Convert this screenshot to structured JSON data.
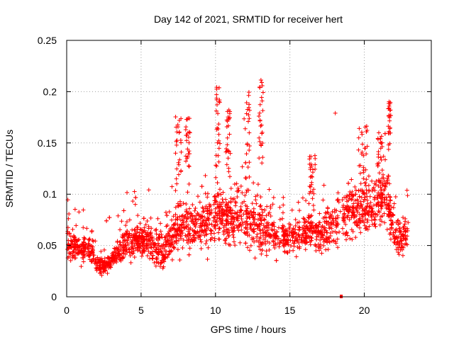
{
  "chart_data": {
    "type": "scatter",
    "title": "Day 142 of 2021, SRMTID for receiver hert",
    "xlabel": "GPS time / hours",
    "ylabel": "SRMTID / TECUs",
    "xlim": [
      0,
      24.5
    ],
    "ylim": [
      0,
      0.25
    ],
    "xticks": [
      0,
      5,
      10,
      15,
      20
    ],
    "xtick_labels": [
      "0",
      "5",
      "10",
      "15",
      "20"
    ],
    "yticks": [
      0,
      0.05,
      0.1,
      0.15,
      0.2,
      0.25
    ],
    "ytick_labels": [
      "0",
      "0.05",
      "0.1",
      "0.15",
      "0.2",
      "0.25"
    ],
    "grid": true,
    "marker": "+",
    "series_color": "#ff0000",
    "profile": {
      "hours": [
        0,
        0.5,
        1,
        1.5,
        2,
        2.5,
        3,
        3.5,
        4,
        4.5,
        5,
        5.5,
        6,
        6.5,
        7,
        7.5,
        8,
        8.5,
        9,
        9.5,
        10,
        10.5,
        11,
        11.5,
        12,
        12.5,
        13,
        13.5,
        14,
        14.5,
        15,
        15.5,
        16,
        16.5,
        17,
        17.5,
        18,
        18.5,
        19,
        19.5,
        20,
        20.5,
        21,
        21.5,
        22,
        22.5,
        23
      ],
      "median": [
        0.055,
        0.048,
        0.045,
        0.05,
        0.032,
        0.03,
        0.035,
        0.045,
        0.055,
        0.055,
        0.055,
        0.055,
        0.05,
        0.045,
        0.06,
        0.065,
        0.07,
        0.07,
        0.07,
        0.075,
        0.08,
        0.075,
        0.075,
        0.08,
        0.078,
        0.07,
        0.07,
        0.065,
        0.06,
        0.06,
        0.06,
        0.062,
        0.06,
        0.065,
        0.06,
        0.065,
        0.07,
        0.075,
        0.08,
        0.085,
        0.09,
        0.085,
        0.09,
        0.1,
        0.06,
        0.055,
        0.06
      ],
      "spread": [
        0.02,
        0.015,
        0.015,
        0.015,
        0.01,
        0.01,
        0.01,
        0.015,
        0.02,
        0.02,
        0.02,
        0.02,
        0.025,
        0.02,
        0.025,
        0.025,
        0.025,
        0.025,
        0.025,
        0.03,
        0.035,
        0.03,
        0.03,
        0.035,
        0.035,
        0.03,
        0.035,
        0.025,
        0.02,
        0.02,
        0.02,
        0.02,
        0.02,
        0.025,
        0.02,
        0.025,
        0.025,
        0.025,
        0.03,
        0.03,
        0.03,
        0.03,
        0.03,
        0.035,
        0.025,
        0.02,
        0.02
      ]
    },
    "clusters": [
      {
        "x": [
          7.3,
          7.7
        ],
        "y": [
          0.1,
          0.185
        ]
      },
      {
        "x": [
          8.0,
          8.3
        ],
        "y": [
          0.1,
          0.175
        ]
      },
      {
        "x": [
          10.0,
          10.3
        ],
        "y": [
          0.12,
          0.207
        ]
      },
      {
        "x": [
          10.7,
          11.0
        ],
        "y": [
          0.12,
          0.183
        ]
      },
      {
        "x": [
          11.9,
          12.3
        ],
        "y": [
          0.11,
          0.2
        ]
      },
      {
        "x": [
          12.9,
          13.2
        ],
        "y": [
          0.13,
          0.213
        ]
      },
      {
        "x": [
          16.3,
          16.7
        ],
        "y": [
          0.1,
          0.147
        ]
      },
      {
        "x": [
          19.6,
          20.2
        ],
        "y": [
          0.11,
          0.168
        ]
      },
      {
        "x": [
          20.9,
          21.3
        ],
        "y": [
          0.1,
          0.16
        ]
      },
      {
        "x": [
          21.6,
          21.8
        ],
        "y": [
          0.14,
          0.191
        ]
      }
    ],
    "outliers": [
      {
        "x": 18.05,
        "y": 0.179
      },
      {
        "x": 18.45,
        "y": 0.0
      }
    ],
    "point_count": 2400
  }
}
